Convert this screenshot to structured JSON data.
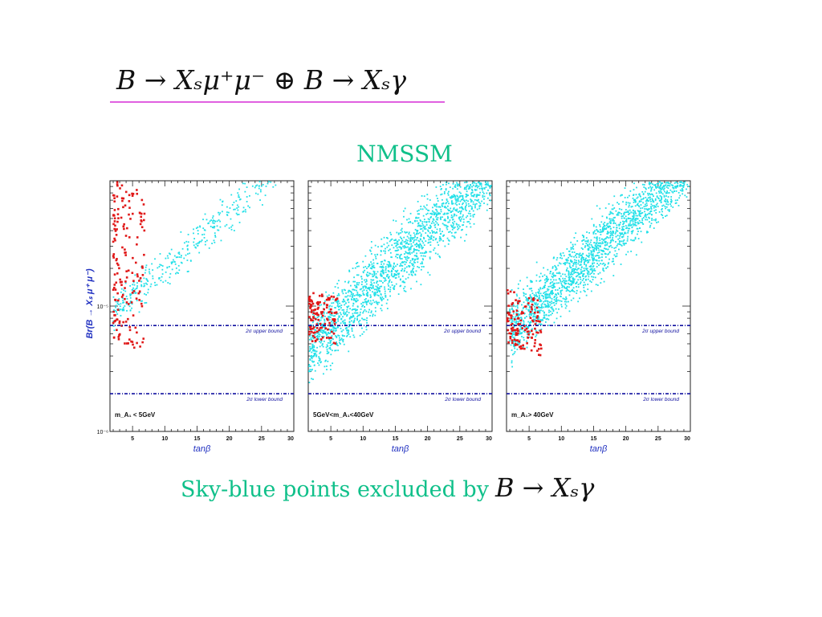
{
  "slide": {
    "title_math": "B → Xₛμ⁺μ⁻  ⊕  B → Xₛγ",
    "subtitle": "NMSSM",
    "caption_text": "Sky-blue points excluded by",
    "caption_math": "B → Xₛγ"
  },
  "colors": {
    "excluded": "#22e0e8",
    "allowed": "#e01818",
    "bound_line": "#1010a0",
    "axis_label": "#2030c0",
    "accent": "#10c08a"
  },
  "chart_data": [
    {
      "type": "scatter",
      "xlabel": "tanβ",
      "ylabel": "Br(B → Xₛ μ⁺ μ⁻)",
      "y_scale": "log",
      "xlim": [
        1.5,
        30
      ],
      "ylim": [
        1e-06,
        0.0001
      ],
      "x_ticks": [
        "5",
        "10",
        "15",
        "20",
        "25",
        "30"
      ],
      "y_ticks": [
        "10⁻⁶",
        "10⁻⁵"
      ],
      "annotation": "m_A₁ < 5GeV",
      "bounds": [
        {
          "label": "2σ upper bound",
          "y": 7e-06
        },
        {
          "label": "2σ lower bound",
          "y": 2e-06
        }
      ],
      "series": [
        {
          "color": "excluded",
          "region": "sparse band, tanβ 2–28, Br ≈ 8×10⁻⁶ to 1×10⁻⁴"
        },
        {
          "color": "allowed",
          "region": "tanβ 2–7, Br ≈ 5×10⁻⁶ to 1×10⁻⁴"
        }
      ]
    },
    {
      "type": "scatter",
      "xlabel": "tanβ",
      "y_scale": "log",
      "xlim": [
        1.5,
        30
      ],
      "ylim": [
        1e-06,
        0.0001
      ],
      "x_ticks": [
        "5",
        "10",
        "15",
        "20",
        "25",
        "30"
      ],
      "annotation": "5GeV<m_A₁<40GeV",
      "bounds": [
        {
          "label": "2σ upper bound",
          "y": 7e-06
        },
        {
          "label": "2σ lower bound",
          "y": 2e-06
        }
      ],
      "series": [
        {
          "color": "excluded",
          "region": "dense band, tanβ 1.5–30, Br ≈ 5×10⁻⁶ to 1×10⁻⁴"
        },
        {
          "color": "allowed",
          "region": "tanβ 1.5–6, Br ≈ 5×10⁻⁶ to 1.3×10⁻⁵"
        }
      ]
    },
    {
      "type": "scatter",
      "xlabel": "tanβ",
      "y_scale": "log",
      "xlim": [
        1.5,
        30
      ],
      "ylim": [
        1e-06,
        0.0001
      ],
      "x_ticks": [
        "5",
        "10",
        "15",
        "20",
        "25",
        "30"
      ],
      "annotation": "m_A₁> 40GeV",
      "bounds": [
        {
          "label": "2σ upper bound",
          "y": 7e-06
        },
        {
          "label": "2σ lower bound",
          "y": 2e-06
        }
      ],
      "series": [
        {
          "color": "excluded",
          "region": "dense band, tanβ 2–30, Br ≈ 5.5×10⁻⁶ to 1×10⁻⁴"
        },
        {
          "color": "allowed",
          "region": "tanβ 1.5–7, Br ≈ 5×10⁻⁶ to 1.4×10⁻⁵"
        }
      ]
    }
  ]
}
